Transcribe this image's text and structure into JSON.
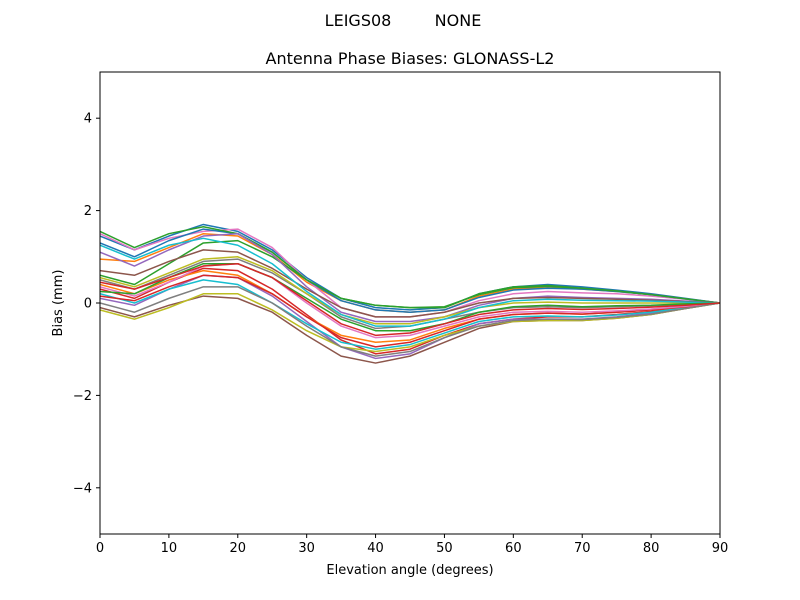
{
  "suptitle": {
    "left": "LEIGS08",
    "right": "NONE"
  },
  "chart_data": {
    "type": "line",
    "title": "Antenna Phase Biases: GLONASS-L2",
    "xlabel": "Elevation angle (degrees)",
    "ylabel": "Bias (mm)",
    "xlim": [
      0,
      90
    ],
    "ylim": [
      -5,
      5
    ],
    "xticks": [
      0,
      10,
      20,
      30,
      40,
      50,
      60,
      70,
      80,
      90
    ],
    "xtick_labels": [
      "0",
      "10",
      "20",
      "30",
      "40",
      "50",
      "60",
      "70",
      "80",
      "90"
    ],
    "yticks": [
      -4,
      -2,
      0,
      2,
      4
    ],
    "ytick_labels": [
      "−4",
      "−2",
      "0",
      "2",
      "4"
    ],
    "grid": false,
    "legend": "none",
    "x": [
      0,
      5,
      10,
      15,
      20,
      25,
      30,
      35,
      40,
      45,
      50,
      55,
      60,
      65,
      70,
      75,
      80,
      85,
      90
    ],
    "series": [
      {
        "color": "#1f77b4",
        "values": [
          1.45,
          1.15,
          1.45,
          1.7,
          1.55,
          1.15,
          0.55,
          0.1,
          -0.1,
          -0.15,
          -0.1,
          0.2,
          0.35,
          0.4,
          0.35,
          0.28,
          0.2,
          0.1,
          0.0
        ]
      },
      {
        "color": "#ff7f0e",
        "values": [
          0.95,
          0.9,
          1.2,
          1.5,
          1.45,
          1.05,
          0.45,
          0.05,
          -0.15,
          -0.2,
          -0.15,
          0.15,
          0.3,
          0.35,
          0.3,
          0.25,
          0.18,
          0.09,
          0.0
        ]
      },
      {
        "color": "#2ca02c",
        "values": [
          0.6,
          0.4,
          0.85,
          1.3,
          1.35,
          1.0,
          0.5,
          0.1,
          -0.05,
          -0.1,
          -0.1,
          0.2,
          0.35,
          0.38,
          0.32,
          0.26,
          0.18,
          0.09,
          0.0
        ]
      },
      {
        "color": "#d62728",
        "values": [
          0.3,
          0.1,
          0.45,
          0.75,
          0.7,
          0.3,
          -0.25,
          -0.8,
          -1.1,
          -1.0,
          -0.7,
          -0.45,
          -0.35,
          -0.3,
          -0.3,
          -0.25,
          -0.18,
          -0.09,
          0.0
        ]
      },
      {
        "color": "#9467bd",
        "values": [
          0.1,
          -0.05,
          0.3,
          0.6,
          0.55,
          0.15,
          -0.4,
          -0.95,
          -1.2,
          -1.1,
          -0.75,
          -0.45,
          -0.35,
          -0.35,
          -0.35,
          -0.3,
          -0.22,
          -0.1,
          0.0
        ]
      },
      {
        "color": "#8c564b",
        "values": [
          -0.1,
          -0.3,
          -0.05,
          0.15,
          0.1,
          -0.2,
          -0.7,
          -1.15,
          -1.3,
          -1.15,
          -0.85,
          -0.55,
          -0.4,
          -0.38,
          -0.38,
          -0.33,
          -0.25,
          -0.12,
          0.0
        ]
      },
      {
        "color": "#e377c2",
        "values": [
          1.5,
          1.15,
          1.4,
          1.55,
          1.6,
          1.2,
          0.5,
          -0.1,
          -0.3,
          -0.3,
          -0.2,
          0.05,
          0.2,
          0.25,
          0.22,
          0.2,
          0.15,
          0.08,
          0.0
        ]
      },
      {
        "color": "#7f7f7f",
        "values": [
          0.5,
          0.3,
          0.6,
          0.9,
          0.95,
          0.65,
          0.2,
          -0.3,
          -0.55,
          -0.5,
          -0.35,
          -0.2,
          -0.1,
          -0.08,
          -0.1,
          -0.08,
          -0.06,
          -0.03,
          0.0
        ]
      },
      {
        "color": "#bcbd22",
        "values": [
          -0.15,
          -0.35,
          -0.1,
          0.2,
          0.2,
          -0.15,
          -0.6,
          -0.95,
          -1.05,
          -0.95,
          -0.7,
          -0.5,
          -0.4,
          -0.38,
          -0.38,
          -0.33,
          -0.25,
          -0.12,
          0.0
        ]
      },
      {
        "color": "#17becf",
        "values": [
          0.2,
          0.0,
          0.3,
          0.5,
          0.4,
          0.0,
          -0.45,
          -0.85,
          -1.0,
          -0.9,
          -0.65,
          -0.4,
          -0.3,
          -0.28,
          -0.3,
          -0.26,
          -0.2,
          -0.1,
          0.0
        ]
      },
      {
        "color": "#1f77b4",
        "values": [
          1.3,
          1.0,
          1.35,
          1.6,
          1.5,
          1.1,
          0.5,
          0.05,
          -0.15,
          -0.2,
          -0.15,
          0.12,
          0.28,
          0.32,
          0.3,
          0.25,
          0.18,
          0.09,
          0.0
        ]
      },
      {
        "color": "#ff7f0e",
        "values": [
          0.4,
          0.2,
          0.5,
          0.7,
          0.6,
          0.2,
          -0.3,
          -0.7,
          -0.85,
          -0.8,
          -0.55,
          -0.35,
          -0.25,
          -0.22,
          -0.24,
          -0.2,
          -0.15,
          -0.08,
          0.0
        ]
      },
      {
        "color": "#2ca02c",
        "values": [
          1.55,
          1.2,
          1.5,
          1.65,
          1.5,
          1.1,
          0.5,
          0.1,
          -0.05,
          -0.1,
          -0.08,
          0.18,
          0.33,
          0.36,
          0.32,
          0.26,
          0.18,
          0.09,
          0.0
        ]
      },
      {
        "color": "#d62728",
        "values": [
          0.15,
          0.05,
          0.35,
          0.6,
          0.55,
          0.2,
          -0.3,
          -0.75,
          -0.95,
          -0.85,
          -0.6,
          -0.35,
          -0.25,
          -0.22,
          -0.24,
          -0.2,
          -0.15,
          -0.08,
          0.0
        ]
      },
      {
        "color": "#9467bd",
        "values": [
          1.1,
          0.8,
          1.15,
          1.45,
          1.5,
          1.05,
          0.35,
          -0.2,
          -0.4,
          -0.4,
          -0.3,
          -0.05,
          0.1,
          0.15,
          0.12,
          0.1,
          0.08,
          0.04,
          0.0
        ]
      },
      {
        "color": "#8c564b",
        "values": [
          0.7,
          0.6,
          0.9,
          1.15,
          1.1,
          0.75,
          0.3,
          -0.1,
          -0.3,
          -0.3,
          -0.2,
          0.0,
          0.1,
          0.12,
          0.1,
          0.08,
          0.06,
          0.03,
          0.0
        ]
      },
      {
        "color": "#e377c2",
        "values": [
          0.35,
          0.15,
          0.45,
          0.8,
          0.85,
          0.55,
          0.0,
          -0.5,
          -0.75,
          -0.7,
          -0.5,
          -0.3,
          -0.2,
          -0.18,
          -0.2,
          -0.17,
          -0.13,
          -0.07,
          0.0
        ]
      },
      {
        "color": "#7f7f7f",
        "values": [
          0.0,
          -0.2,
          0.1,
          0.35,
          0.35,
          0.0,
          -0.5,
          -0.95,
          -1.15,
          -1.05,
          -0.75,
          -0.5,
          -0.38,
          -0.35,
          -0.36,
          -0.31,
          -0.24,
          -0.12,
          0.0
        ]
      },
      {
        "color": "#bcbd22",
        "values": [
          0.55,
          0.35,
          0.65,
          0.95,
          1.0,
          0.7,
          0.2,
          -0.25,
          -0.45,
          -0.45,
          -0.3,
          -0.1,
          0.0,
          0.02,
          0.0,
          0.0,
          0.0,
          0.0,
          0.0
        ]
      },
      {
        "color": "#17becf",
        "values": [
          1.25,
          0.95,
          1.25,
          1.4,
          1.25,
          0.85,
          0.25,
          -0.25,
          -0.5,
          -0.5,
          -0.35,
          -0.1,
          0.05,
          0.08,
          0.06,
          0.05,
          0.04,
          0.02,
          0.0
        ]
      },
      {
        "color": "#2ca02c",
        "values": [
          0.25,
          0.2,
          0.55,
          0.85,
          0.85,
          0.55,
          0.1,
          -0.35,
          -0.6,
          -0.6,
          -0.45,
          -0.2,
          -0.08,
          -0.05,
          -0.08,
          -0.06,
          -0.05,
          -0.02,
          0.0
        ]
      },
      {
        "color": "#d62728",
        "values": [
          0.45,
          0.3,
          0.55,
          0.8,
          0.85,
          0.55,
          0.05,
          -0.45,
          -0.7,
          -0.65,
          -0.45,
          -0.25,
          -0.15,
          -0.12,
          -0.14,
          -0.12,
          -0.09,
          -0.05,
          0.0
        ]
      }
    ]
  }
}
